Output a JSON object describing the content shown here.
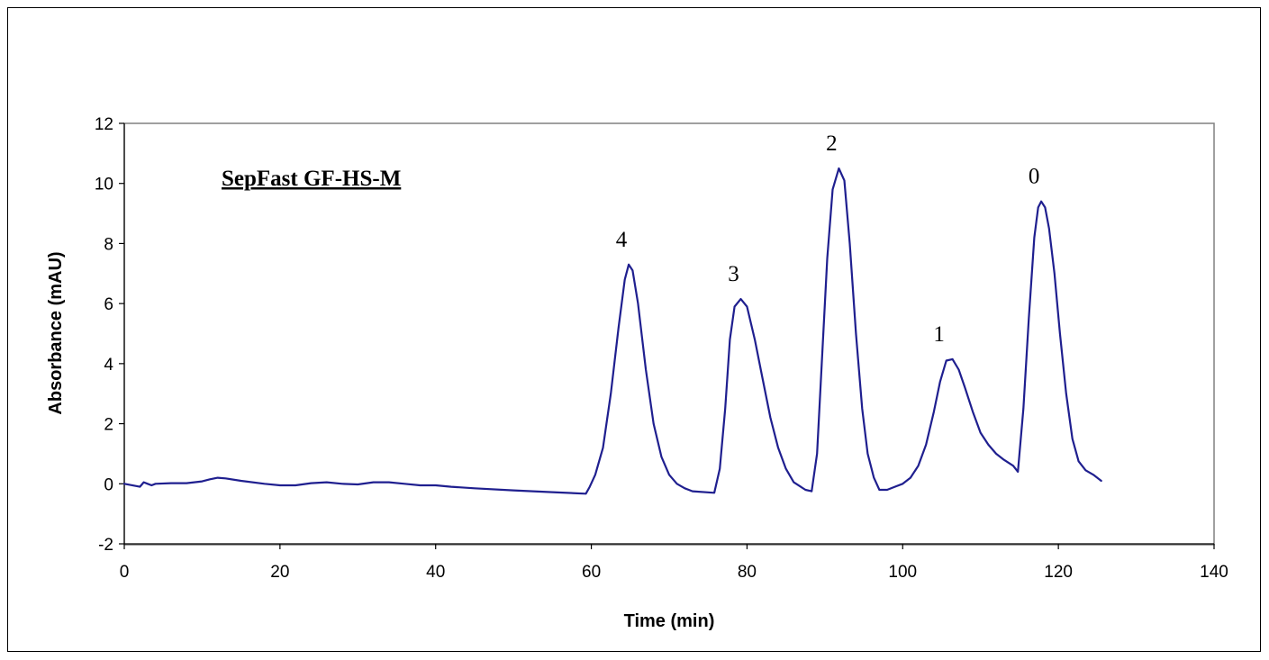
{
  "chart_data": {
    "type": "line",
    "xlabel": "Time (min)",
    "ylabel": "Absorbance (mAU)",
    "xlim": [
      0,
      140
    ],
    "ylim": [
      -2,
      12
    ],
    "x_ticks": [
      0,
      20,
      40,
      60,
      80,
      100,
      120,
      140
    ],
    "y_ticks": [
      -2,
      0,
      2,
      4,
      6,
      8,
      10,
      12
    ],
    "grid": false,
    "legend": "none",
    "line_color": "#1f1f8f",
    "annotation": "SepFast GF-HS-M",
    "peak_labels": [
      {
        "text": "4",
        "x": 64.8,
        "y": 7.3
      },
      {
        "text": "3",
        "x": 79.2,
        "y": 6.15
      },
      {
        "text": "2",
        "x": 91.8,
        "y": 10.5
      },
      {
        "text": "1",
        "x": 105.6,
        "y": 4.15
      },
      {
        "text": "0",
        "x": 117.8,
        "y": 9.4
      }
    ],
    "series": [
      {
        "x": [
          0,
          2,
          2.5,
          3,
          3.5,
          4,
          6,
          8,
          10,
          11,
          12,
          13,
          15,
          18,
          20,
          22,
          24,
          26,
          28,
          30,
          32,
          34,
          36,
          38,
          40,
          42,
          45,
          50,
          55,
          59.3,
          59.8,
          60.5,
          61.5,
          62.5,
          63.5,
          64.3,
          64.8,
          65.3,
          66,
          67,
          68,
          69,
          70,
          71,
          72,
          73,
          75.8,
          76.5,
          77.2,
          77.8,
          78.4,
          79.2,
          80,
          81,
          82,
          83,
          84,
          85,
          86,
          87.5,
          88.3,
          89,
          89.6,
          90.3,
          91,
          91.8,
          92.5,
          93.2,
          94,
          94.8,
          95.5,
          96.3,
          97,
          98,
          99,
          100,
          101,
          102,
          103,
          104,
          104.8,
          105.6,
          106.4,
          107.2,
          108,
          109,
          110,
          111,
          112,
          113,
          114.2,
          114.8,
          115.5,
          116.2,
          116.9,
          117.4,
          117.8,
          118.3,
          118.8,
          119.5,
          120.2,
          121,
          121.8,
          122.6,
          123.5,
          124.5,
          125.5
        ],
        "y": [
          0,
          -0.1,
          0.05,
          0,
          -0.05,
          0,
          0.02,
          0.02,
          0.08,
          0.15,
          0.2,
          0.18,
          0.1,
          0,
          -0.05,
          -0.05,
          0.02,
          0.05,
          0,
          -0.02,
          0.05,
          0.05,
          0,
          -0.05,
          -0.05,
          -0.1,
          -0.15,
          -0.22,
          -0.28,
          -0.33,
          -0.1,
          0.3,
          1.2,
          3,
          5.2,
          6.8,
          7.3,
          7.1,
          6,
          3.8,
          2,
          0.9,
          0.3,
          0,
          -0.15,
          -0.25,
          -0.3,
          0.5,
          2.5,
          4.8,
          5.9,
          6.15,
          5.9,
          4.8,
          3.5,
          2.2,
          1.2,
          0.5,
          0.05,
          -0.2,
          -0.25,
          1,
          4,
          7.5,
          9.8,
          10.5,
          10.1,
          8,
          5,
          2.5,
          1,
          0.2,
          -0.2,
          -0.2,
          -0.1,
          0,
          0.2,
          0.6,
          1.3,
          2.4,
          3.4,
          4.1,
          4.15,
          3.8,
          3.2,
          2.4,
          1.7,
          1.3,
          1,
          0.8,
          0.6,
          0.4,
          2.5,
          5.5,
          8.2,
          9.2,
          9.4,
          9.2,
          8.5,
          7,
          5,
          3,
          1.5,
          0.75,
          0.45,
          0.3,
          0.1
        ]
      }
    ]
  }
}
